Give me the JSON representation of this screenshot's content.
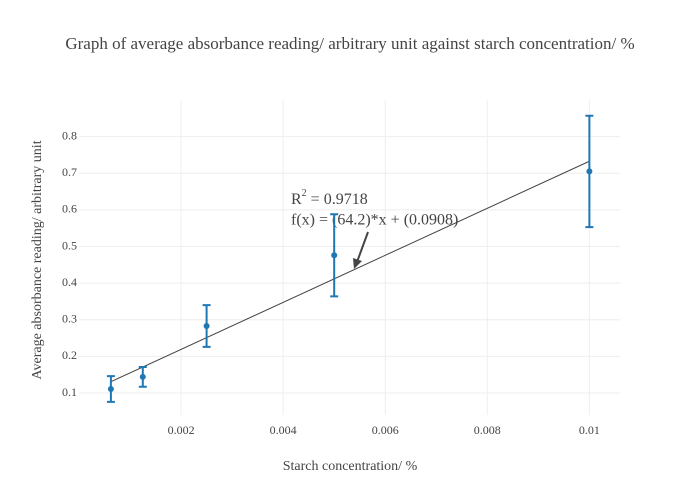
{
  "chart_data": {
    "type": "scatter",
    "title": "Graph of average absorbance reading/ arbitrary unit against starch concentration/ %",
    "x_label": "Starch concentration/ %",
    "y_label": "Average absorbance reading/ arbitrary unit",
    "x": [
      0.000625,
      0.00125,
      0.0025,
      0.005,
      0.01
    ],
    "values": [
      0.111,
      0.144,
      0.283,
      0.476,
      0.705
    ],
    "errors": [
      0.035,
      0.027,
      0.057,
      0.112,
      0.152
    ],
    "color": "#1f77b4",
    "fit": {
      "x": [
        0.000625,
        0.01
      ],
      "values": [
        0.1309,
        0.7328
      ],
      "color": "#444444"
    },
    "annotation": {
      "r2_prefix": "R",
      "r2_sup": "2",
      "r2_rest": " = 0.9718",
      "formula": "f(x) = (64.2)*x + (0.0908)"
    },
    "xlim": [
      0,
      0.0106
    ],
    "ylim": [
      0.04,
      0.9
    ],
    "xticks": [
      0.002,
      0.004,
      0.006,
      0.008,
      0.01
    ],
    "yticks": [
      0.1,
      0.2,
      0.3,
      0.4,
      0.5,
      0.6,
      0.7,
      0.8
    ],
    "grid": true
  }
}
